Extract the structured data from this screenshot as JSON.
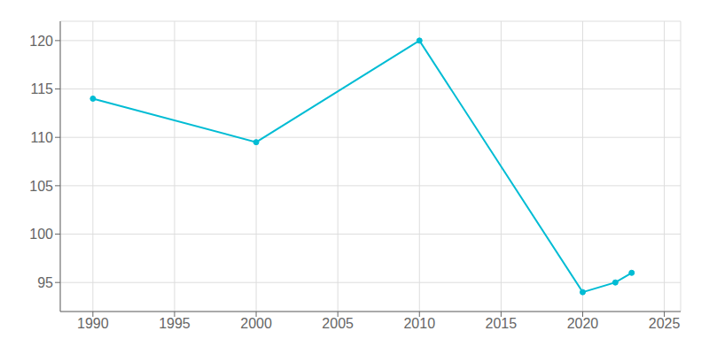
{
  "chart_data": {
    "type": "line",
    "x": [
      1990,
      2000,
      2010,
      2020,
      2022,
      2023
    ],
    "values": [
      114,
      109.5,
      120,
      94,
      95,
      96
    ],
    "color": "#00bcd4",
    "marker": "o",
    "xlim": [
      1988,
      2026
    ],
    "ylim": [
      92,
      122
    ],
    "xticks": [
      1990,
      1995,
      2000,
      2005,
      2010,
      2015,
      2020,
      2025
    ],
    "yticks": [
      95,
      100,
      105,
      110,
      115,
      120
    ],
    "grid": true
  }
}
